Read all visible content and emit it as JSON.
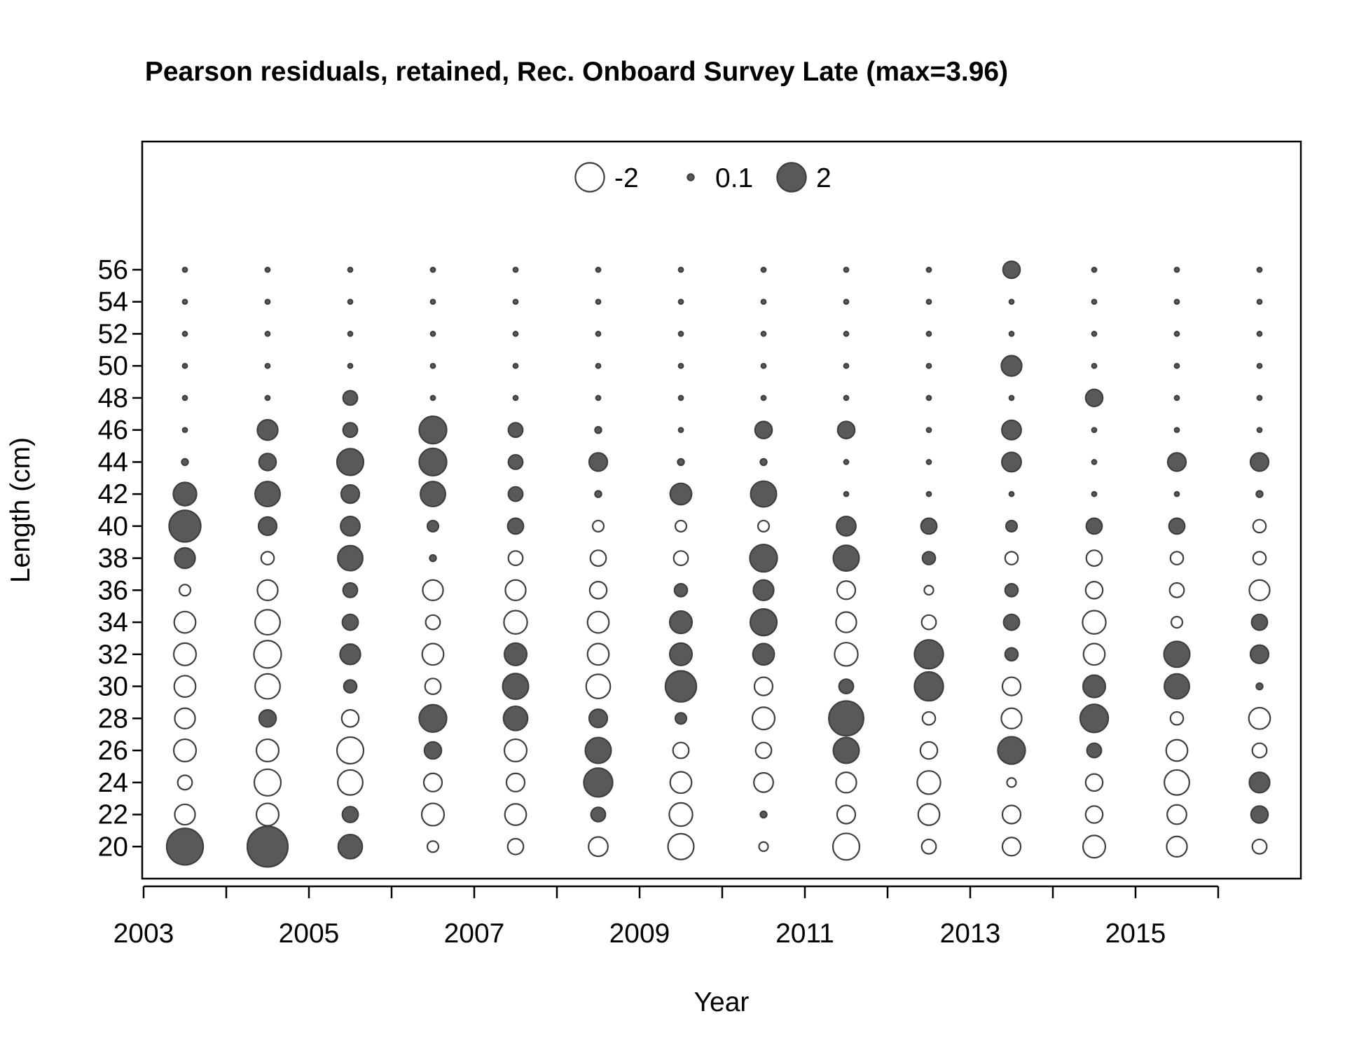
{
  "chart_data": {
    "type": "scatter",
    "title": "Pearson residuals, retained, Rec. Onboard Survey Late (max=3.96)",
    "xlabel": "Year",
    "ylabel": "Length (cm)",
    "xlim": [
      2003,
      2017
    ],
    "ylim": [
      18,
      64
    ],
    "x_ticks": [
      2003,
      2004,
      2005,
      2006,
      2007,
      2008,
      2009,
      2010,
      2011,
      2012,
      2013,
      2014,
      2015,
      2016
    ],
    "x_tick_labels": [
      2003,
      2005,
      2007,
      2009,
      2011,
      2013,
      2015
    ],
    "y_ticks": [
      20,
      22,
      24,
      26,
      28,
      30,
      32,
      34,
      36,
      38,
      40,
      42,
      44,
      46,
      48,
      50,
      52,
      54,
      56
    ],
    "grid": false,
    "legend_position": "top-center",
    "legend": [
      {
        "label": "-2",
        "value": -2
      },
      {
        "label": "0.1",
        "value": 0.1
      },
      {
        "label": "2",
        "value": 2
      }
    ],
    "colors": {
      "positive_fill": "#595959",
      "outline": "#3f3f3f",
      "negative_fill": "#ffffff"
    },
    "max_value": 3.96,
    "years": [
      2003.5,
      2004.5,
      2005.5,
      2006.5,
      2007.5,
      2008.5,
      2009.5,
      2010.5,
      2011.5,
      2012.5,
      2013.5,
      2014.5,
      2015.5,
      2016.5
    ],
    "lengths": [
      20,
      22,
      24,
      26,
      28,
      30,
      32,
      34,
      36,
      38,
      40,
      42,
      44,
      46,
      48,
      50,
      52,
      54,
      56
    ],
    "residuals": [
      [
        3.2,
        -1.0,
        -0.5,
        -1.2,
        -1.0,
        -1.1,
        -1.2,
        -1.1,
        -0.3,
        1.0,
        2.4,
        1.3,
        0.1,
        0.05,
        0.05,
        0.05,
        0.05,
        0.05,
        0.05
      ],
      [
        3.96,
        -1.2,
        -1.7,
        -1.2,
        0.7,
        -1.5,
        -1.8,
        -1.5,
        -1.0,
        -0.4,
        0.8,
        1.5,
        0.7,
        1.0,
        0.05,
        0.05,
        0.05,
        0.05,
        0.05
      ],
      [
        1.4,
        0.6,
        -1.5,
        -1.7,
        -0.7,
        0.4,
        1.0,
        0.6,
        0.5,
        1.5,
        0.9,
        0.8,
        1.7,
        0.5,
        0.5,
        0.05,
        0.05,
        0.05,
        0.05
      ],
      [
        -0.3,
        -1.2,
        -0.8,
        0.7,
        1.8,
        -0.6,
        -1.1,
        -0.5,
        -1.0,
        0.1,
        0.3,
        1.5,
        1.8,
        1.8,
        0.05,
        0.05,
        0.05,
        0.05,
        0.05
      ],
      [
        -0.6,
        -1.1,
        -0.8,
        -1.2,
        1.4,
        1.6,
        1.2,
        -1.3,
        -1.0,
        -0.5,
        0.6,
        0.5,
        0.5,
        0.5,
        0.05,
        0.05,
        0.05,
        0.05,
        0.05
      ],
      [
        -0.9,
        0.5,
        2.0,
        1.6,
        0.8,
        -1.4,
        -1.1,
        -1.1,
        -0.7,
        -0.6,
        -0.3,
        0.1,
        0.8,
        0.1,
        0.05,
        0.05,
        0.05,
        0.05,
        0.05
      ],
      [
        -1.6,
        -1.3,
        -1.1,
        -0.6,
        0.3,
        2.3,
        1.2,
        1.2,
        0.4,
        -0.5,
        -0.3,
        1.1,
        0.1,
        0.05,
        0.05,
        0.05,
        0.05,
        0.05,
        0.05
      ],
      [
        -0.2,
        0.1,
        -0.9,
        -0.6,
        -1.2,
        -0.8,
        1.1,
        1.7,
        1.0,
        1.8,
        -0.3,
        1.6,
        0.1,
        0.7,
        0.05,
        0.05,
        0.05,
        0.05,
        0.05
      ],
      [
        -1.7,
        -0.8,
        -1.0,
        1.6,
        2.9,
        0.5,
        -1.3,
        -1.0,
        -0.8,
        1.6,
        0.9,
        0.05,
        0.05,
        0.7,
        0.05,
        0.05,
        0.05,
        0.05,
        0.05
      ],
      [
        -0.5,
        -1.1,
        -1.3,
        -0.7,
        -0.4,
        2.0,
        2.0,
        -0.5,
        -0.2,
        0.4,
        0.6,
        0.05,
        0.05,
        0.05,
        0.05,
        0.05,
        0.05,
        0.05,
        0.05
      ],
      [
        -0.8,
        -0.8,
        -0.2,
        1.8,
        -1.0,
        -0.8,
        0.4,
        0.6,
        0.4,
        -0.4,
        0.3,
        0.05,
        0.9,
        0.9,
        0.05,
        1.0,
        0.05,
        0.05,
        0.7
      ],
      [
        -1.2,
        -0.7,
        -0.7,
        0.5,
        1.9,
        1.2,
        -1.1,
        -1.3,
        -0.7,
        -0.6,
        0.6,
        0.05,
        0.05,
        0.05,
        0.7,
        0.05,
        0.05,
        0.05,
        0.05
      ],
      [
        -1.0,
        -0.9,
        -1.5,
        -1.1,
        -0.4,
        1.5,
        1.6,
        -0.3,
        -0.5,
        -0.4,
        0.6,
        0.05,
        0.8,
        0.05,
        0.05,
        0.05,
        0.05,
        0.05,
        0.05
      ],
      [
        -0.5,
        0.7,
        1.0,
        -0.5,
        -1.1,
        0.1,
        0.8,
        0.6,
        -1.0,
        -0.4,
        -0.4,
        0.1,
        0.8,
        0.05,
        0.05,
        0.05,
        0.05,
        0.05,
        0.05
      ]
    ]
  }
}
